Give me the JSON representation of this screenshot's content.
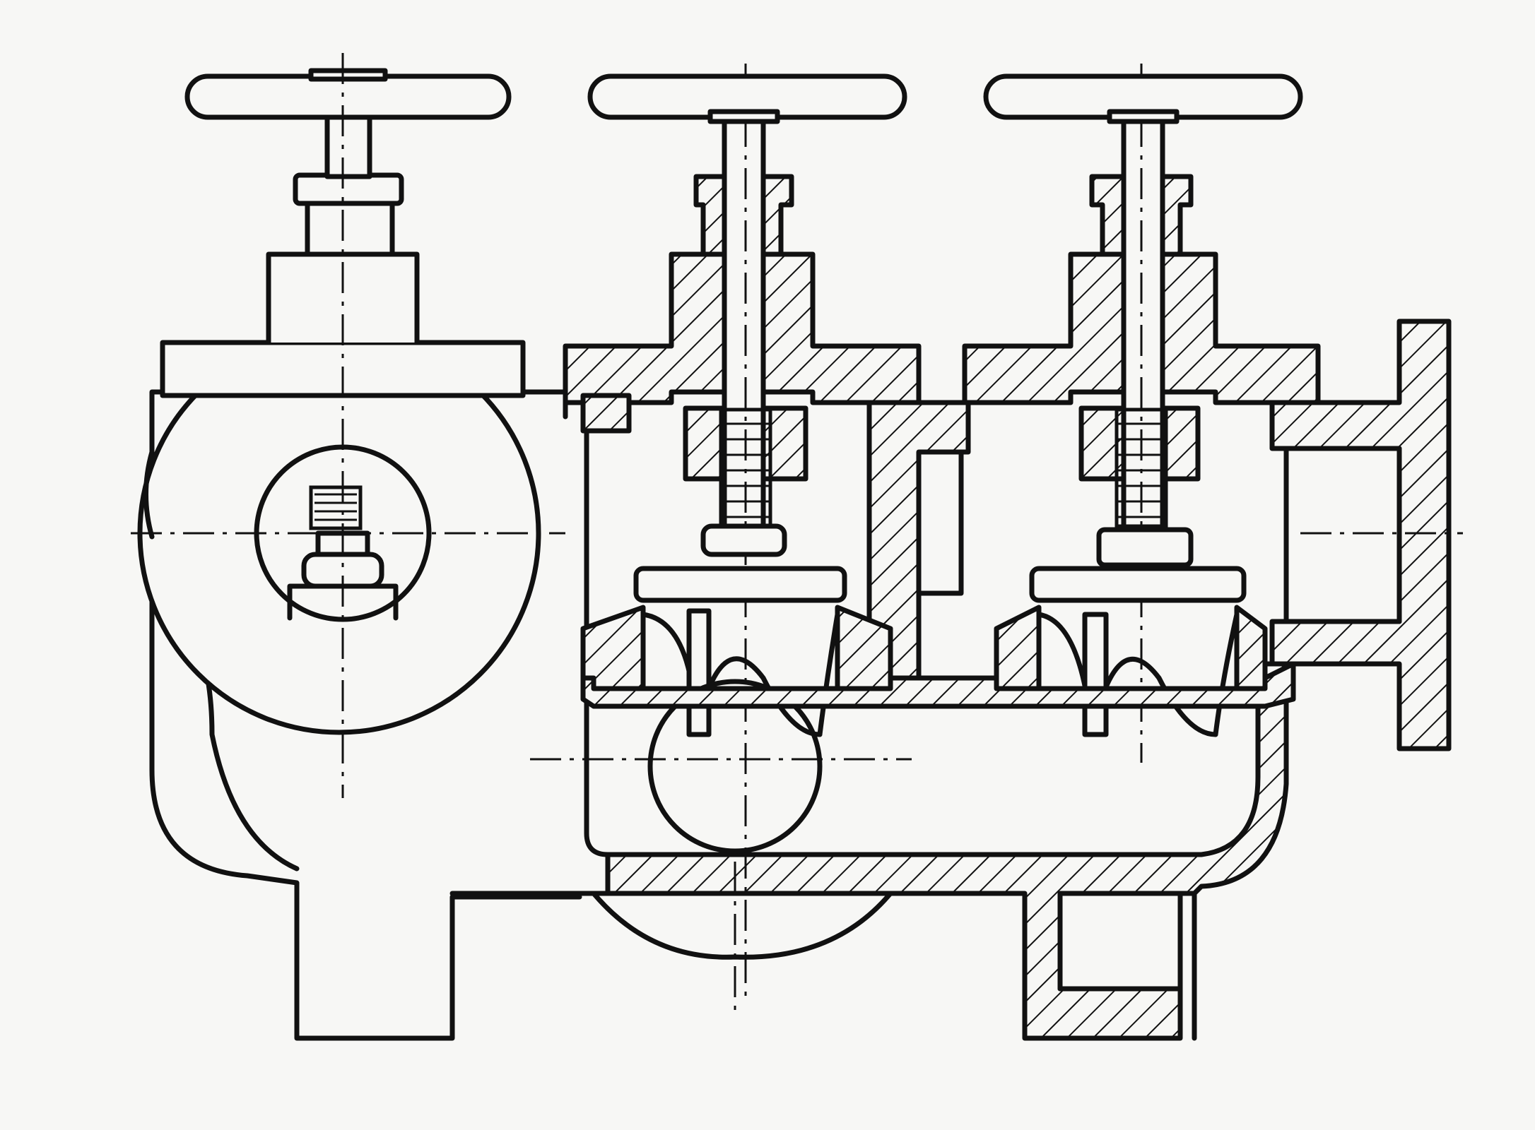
{
  "figure": {
    "valve_count": 3,
    "colors": {
      "ink": "#111111",
      "paper": "#f7f7f5"
    },
    "components": [
      "valve-handwheel-left",
      "valve-handwheel-middle",
      "valve-handwheel-right",
      "valve-stem",
      "gland-packing",
      "bonnet",
      "valve-disc",
      "valve-seat",
      "compression-spring",
      "valve-body",
      "outlet-flange",
      "drain-branch"
    ]
  }
}
